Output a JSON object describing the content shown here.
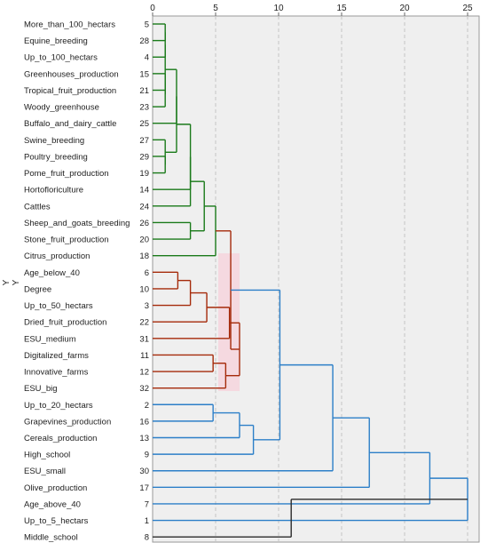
{
  "chart_data": {
    "type": "dendrogram",
    "title": "",
    "y_axis_letters": [
      "Y",
      "Y"
    ],
    "x_ticks": [
      0,
      5,
      10,
      15,
      20,
      25
    ],
    "xlim": [
      0,
      25
    ],
    "grid": "vertical-dashed",
    "colors": {
      "cluster_green": "#1a7a1a",
      "cluster_red": "#a52a0a",
      "cluster_blue": "#2c7fc8",
      "root_black": "#2b2b2b",
      "plot_background": "#efefef",
      "highlight": "#f9c7d4"
    },
    "leaves": [
      {
        "label": "More_than_100_hectars",
        "id": "5"
      },
      {
        "label": "Equine_breeding",
        "id": "28"
      },
      {
        "label": "Up_to_100_hectars",
        "id": "4"
      },
      {
        "label": "Greenhouses_production",
        "id": "15"
      },
      {
        "label": "Tropical_fruit_production",
        "id": "21"
      },
      {
        "label": "Woody_greenhouse",
        "id": "23"
      },
      {
        "label": "Buffalo_and_dairy_cattle",
        "id": "25"
      },
      {
        "label": "Swine_breeding",
        "id": "27"
      },
      {
        "label": "Poultry_breeding",
        "id": "29"
      },
      {
        "label": "Pome_fruit_production",
        "id": "19"
      },
      {
        "label": "Hortofloriculture",
        "id": "14"
      },
      {
        "label": "Cattles",
        "id": "24"
      },
      {
        "label": "Sheep_and_goats_breeding",
        "id": "26"
      },
      {
        "label": "Stone_fruit_production",
        "id": "20"
      },
      {
        "label": "Citrus_production",
        "id": "18"
      },
      {
        "label": "Age_below_40",
        "id": "6"
      },
      {
        "label": "Degree",
        "id": "10"
      },
      {
        "label": "Up_to_50_hectars",
        "id": "3"
      },
      {
        "label": "Dried_fruit_production",
        "id": "22"
      },
      {
        "label": "ESU_medium",
        "id": "31"
      },
      {
        "label": "Digitalized_farms",
        "id": "11"
      },
      {
        "label": "Innovative_farms",
        "id": "12"
      },
      {
        "label": "ESU_big",
        "id": "32"
      },
      {
        "label": "Up_to_20_hectars",
        "id": "2"
      },
      {
        "label": "Grapevines_production",
        "id": "16"
      },
      {
        "label": "Cereals_production",
        "id": "13"
      },
      {
        "label": "High_school",
        "id": "9"
      },
      {
        "label": "ESU_small",
        "id": "30"
      },
      {
        "label": "Olive_production",
        "id": "17"
      },
      {
        "label": "Age_above_40",
        "id": "7"
      },
      {
        "label": "Up_to_5_hectars",
        "id": "1"
      },
      {
        "label": "Middle_school",
        "id": "8"
      }
    ],
    "merges": [
      {
        "id": "m1",
        "a": 0,
        "b": 1,
        "d": 1.0,
        "color": "green"
      },
      {
        "id": "m2",
        "a": "m1",
        "b": 2,
        "d": 1.0,
        "color": "green"
      },
      {
        "id": "m3",
        "a": 3,
        "b": 4,
        "d": 1.0,
        "color": "green"
      },
      {
        "id": "m4",
        "a": "m3",
        "b": 5,
        "d": 1.0,
        "color": "green"
      },
      {
        "id": "m5",
        "a": "m2",
        "b": "m4",
        "d": 1.0,
        "color": "green"
      },
      {
        "id": "m6",
        "a": 8,
        "b": 9,
        "d": 1.0,
        "color": "green"
      },
      {
        "id": "m7",
        "a": 7,
        "b": "m6",
        "d": 1.0,
        "color": "green"
      },
      {
        "id": "m8",
        "a": "m5",
        "b": 6,
        "d": 1.9,
        "color": "green"
      },
      {
        "id": "m9",
        "a": "m8",
        "b": "m7",
        "d": 1.9,
        "color": "green"
      },
      {
        "id": "m10",
        "a": "m9",
        "b": 10,
        "d": 3.0,
        "color": "green"
      },
      {
        "id": "m11",
        "a": 12,
        "b": 13,
        "d": 3.0,
        "color": "green"
      },
      {
        "id": "m12",
        "a": "m10",
        "b": 11,
        "d": 3.0,
        "color": "green"
      },
      {
        "id": "m13",
        "a": "m12",
        "b": "m11",
        "d": 4.1,
        "color": "green"
      },
      {
        "id": "m14",
        "a": "m13",
        "b": 14,
        "d": 5.0,
        "color": "green"
      },
      {
        "id": "m15",
        "a": 15,
        "b": 16,
        "d": 2.0,
        "color": "red"
      },
      {
        "id": "m16",
        "a": "m15",
        "b": 17,
        "d": 3.0,
        "color": "red"
      },
      {
        "id": "m17",
        "a": "m16",
        "b": 18,
        "d": 4.3,
        "color": "red"
      },
      {
        "id": "m18",
        "a": 20,
        "b": 21,
        "d": 4.8,
        "color": "red"
      },
      {
        "id": "m19",
        "a": "m18",
        "b": 22,
        "d": 5.8,
        "color": "red"
      },
      {
        "id": "m20",
        "a": "m17",
        "b": 19,
        "d": 6.1,
        "color": "red"
      },
      {
        "id": "m21",
        "a": "m20",
        "b": "m19",
        "d": 6.9,
        "color": "red"
      },
      {
        "id": "m22",
        "a": "m14",
        "b": "m21",
        "d": 6.2,
        "color": "red"
      },
      {
        "id": "m23",
        "a": 23,
        "b": 24,
        "d": 4.8,
        "color": "blue"
      },
      {
        "id": "m24",
        "a": "m23",
        "b": 25,
        "d": 6.9,
        "color": "blue"
      },
      {
        "id": "m25",
        "a": "m24",
        "b": 26,
        "d": 8.0,
        "color": "blue"
      },
      {
        "id": "m26",
        "a": "m22",
        "b": "m25",
        "d": 10.1,
        "color": "blue"
      },
      {
        "id": "m27",
        "a": "m26",
        "b": 27,
        "d": 14.3,
        "color": "blue"
      },
      {
        "id": "m28",
        "a": "m27",
        "b": 28,
        "d": 17.2,
        "color": "blue"
      },
      {
        "id": "m29",
        "a": "m28",
        "b": 29,
        "d": 22.0,
        "color": "blue"
      },
      {
        "id": "m30",
        "a": "m29",
        "b": 30,
        "d": 25.0,
        "color": "blue"
      },
      {
        "id": "m31",
        "a": "m30",
        "b": 31,
        "d": 11.0,
        "color": "black"
      }
    ]
  }
}
